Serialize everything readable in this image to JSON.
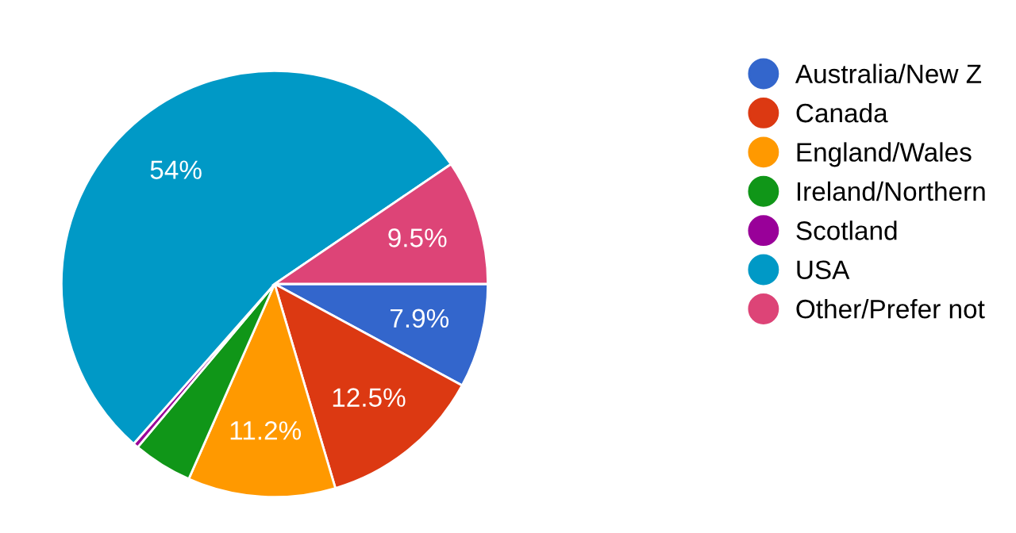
{
  "chart_data": {
    "type": "pie",
    "categories": [
      "Australia/New Z",
      "Canada",
      "England/Wales",
      "Ireland/Northern",
      "Scotland",
      "USA",
      "Other/Prefer not"
    ],
    "values": [
      7.9,
      12.5,
      11.2,
      4.5,
      0.4,
      54,
      9.5
    ],
    "value_labels": [
      "7.9%",
      "12.5%",
      "11.2%",
      null,
      null,
      "54%",
      "9.5%"
    ],
    "colors": [
      "#3366cc",
      "#dc3912",
      "#ff9900",
      "#109618",
      "#990099",
      "#0099c6",
      "#dd4477"
    ],
    "legend": "right"
  }
}
